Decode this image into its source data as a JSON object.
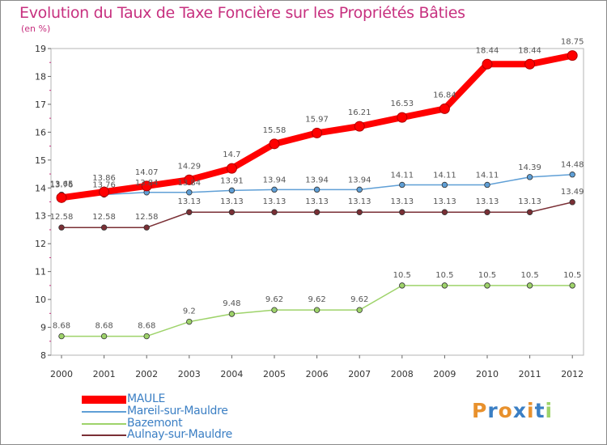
{
  "chart_data": {
    "type": "line",
    "title": "Evolution du Taux de Taxe Foncière sur les Propriétés Bâties",
    "ylabel": "(en %)",
    "xlabel": "",
    "ylim": [
      8,
      19
    ],
    "yticks": [
      "8",
      "9",
      "10",
      "11",
      "12",
      "13",
      "14",
      "15",
      "16",
      "17",
      "18",
      "19"
    ],
    "categories": [
      "2000",
      "2001",
      "2002",
      "2003",
      "2004",
      "2005",
      "2006",
      "2007",
      "2008",
      "2009",
      "2010",
      "2011",
      "2012"
    ],
    "series": [
      {
        "name": "MAULE",
        "color": "#ff0000",
        "values": [
          13.65,
          13.86,
          14.07,
          14.29,
          14.7,
          15.58,
          15.97,
          16.21,
          16.53,
          16.84,
          18.44,
          18.44,
          18.75
        ],
        "labels": [
          "13.65",
          "13.86",
          "14.07",
          "14.29",
          "14.7",
          "15.58",
          "15.97",
          "16.21",
          "16.53",
          "16.84",
          "18.44",
          "18.44",
          "18.75"
        ]
      },
      {
        "name": "Mareil-sur-Mauldre",
        "color": "#5f9fd6",
        "values": [
          13.76,
          13.76,
          13.84,
          13.84,
          13.91,
          13.94,
          13.94,
          13.94,
          14.11,
          14.11,
          14.11,
          14.39,
          14.48
        ],
        "labels": [
          "13.76",
          "13.76",
          "13.84",
          "13.84",
          "13.91",
          "13.94",
          "13.94",
          "13.94",
          "14.11",
          "14.11",
          "14.11",
          "14.39",
          "14.48"
        ]
      },
      {
        "name": "Bazemont",
        "color": "#9ed36a",
        "values": [
          8.68,
          8.68,
          8.68,
          9.2,
          9.48,
          9.62,
          9.62,
          9.62,
          10.5,
          10.5,
          10.5,
          10.5,
          10.5
        ],
        "labels": [
          "8.68",
          "8.68",
          "8.68",
          "9.2",
          "9.48",
          "9.62",
          "9.62",
          "9.62",
          "10.5",
          "10.5",
          "10.5",
          "10.5",
          "10.5"
        ]
      },
      {
        "name": "Aulnay-sur-Mauldre",
        "color": "#7a2f35",
        "values": [
          12.58,
          12.58,
          12.58,
          13.13,
          13.13,
          13.13,
          13.13,
          13.13,
          13.13,
          13.13,
          13.13,
          13.13,
          13.49
        ],
        "labels": [
          "12.58",
          "12.58",
          "12.58",
          "13.13",
          "13.13",
          "13.13",
          "13.13",
          "13.13",
          "13.13",
          "13.13",
          "13.13",
          "13.13",
          "13.49"
        ]
      }
    ],
    "legend": {
      "placement": "bottom-left"
    }
  },
  "branding": {
    "logo_text": "Proxiti",
    "letter_colors": [
      "#e8912d",
      "#3b7fc4",
      "#e8912d",
      "#3b7fc4",
      "#e8912d",
      "#3b7fc4",
      "#9ed36a"
    ]
  }
}
